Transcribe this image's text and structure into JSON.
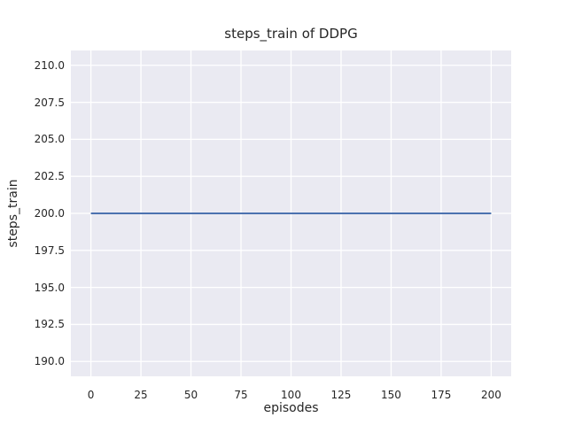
{
  "colors": {
    "figure_background": "#FFFFFF",
    "axes_background": "#EAEAF2",
    "grid": "#FFFFFF",
    "line": "#4C72B0",
    "text": "#262626"
  },
  "chart_data": {
    "type": "line",
    "title": "steps_train of DDPG",
    "xlabel": "episodes",
    "ylabel": "steps_train",
    "xlim": [
      -10,
      210
    ],
    "ylim": [
      189,
      211
    ],
    "xticks": [
      0,
      25,
      50,
      75,
      100,
      125,
      150,
      175,
      200
    ],
    "xtick_labels": [
      "0",
      "25",
      "50",
      "75",
      "100",
      "125",
      "150",
      "175",
      "200"
    ],
    "yticks": [
      190.0,
      192.5,
      195.0,
      197.5,
      200.0,
      202.5,
      205.0,
      207.5,
      210.0
    ],
    "ytick_labels": [
      "190.0",
      "192.5",
      "195.0",
      "197.5",
      "200.0",
      "202.5",
      "205.0",
      "207.5",
      "210.0"
    ],
    "grid": true,
    "legend": null,
    "series": [
      {
        "name": "steps_train",
        "x": [
          0,
          200
        ],
        "y": [
          200,
          200
        ],
        "color": "#4C72B0",
        "linewidth": 2
      }
    ]
  }
}
